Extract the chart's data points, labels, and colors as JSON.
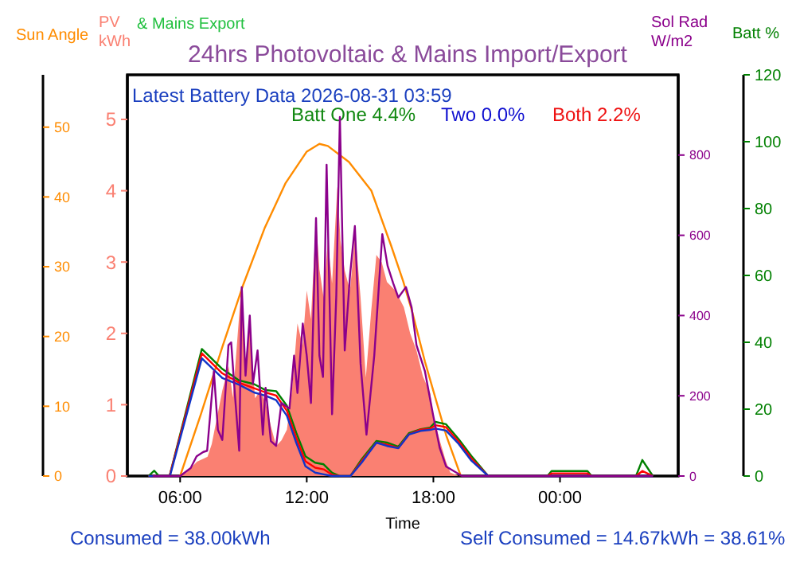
{
  "chart_data": [
    {
      "type": "line",
      "title": "24hrs Photovoltaic & Mains Import/Export",
      "xlabel": "Time",
      "ylabel": "PV kWh",
      "y2label": "Sun Angle",
      "xlim": [
        3.5,
        29.6
      ],
      "xticks": [
        {
          "value": 6,
          "label": "06:00"
        },
        {
          "value": 12,
          "label": "12:00"
        },
        {
          "value": 18,
          "label": "18:00"
        },
        {
          "value": 24,
          "label": "00:00"
        }
      ],
      "ylim": [
        0,
        5.625
      ],
      "yticks": [
        0,
        1,
        2,
        3,
        4,
        5
      ],
      "y2lim": [
        0,
        57.5
      ],
      "y2ticks": [
        0,
        10,
        20,
        30,
        40,
        50
      ],
      "grid": false,
      "annotations": [
        "& Mains Export",
        "Latest Battery Data 2026-08-31 03:59",
        "Batt One 4.4%",
        "Two 0.0%",
        "Both 2.2%",
        "Consumed = 38.00kWh",
        "Self Consumed = 14.67kWh = 38.61%"
      ],
      "series": [
        {
          "type": "area",
          "color": "#fa8072",
          "x": [
            6.0,
            6.3,
            6.8,
            7.3,
            7.5,
            7.8,
            8.0,
            8.3,
            8.5,
            8.9,
            9.1,
            9.3,
            9.55,
            9.8,
            10.05,
            10.3,
            10.55,
            10.8,
            11.06,
            11.3,
            11.56,
            11.8,
            12.0,
            12.2,
            12.44,
            12.6,
            12.8,
            13.0,
            13.2,
            13.45,
            13.6,
            13.8,
            14.05,
            14.3,
            14.55,
            14.8,
            15.05,
            15.3,
            15.55,
            15.8,
            16.2,
            16.6,
            16.9,
            17.2,
            17.5,
            17.85,
            17.98,
            18.3,
            18.6,
            18.8,
            19.2
          ],
          "values": [
            0,
            0.05,
            0.2,
            0.27,
            0.45,
            0.9,
            1.2,
            1.54,
            1.1,
            2.65,
            1.6,
            2.14,
            1.09,
            1.2,
            1.03,
            0.7,
            0.42,
            0.5,
            0.65,
            1.2,
            2.14,
            1.83,
            2.6,
            2.2,
            3.6,
            2.9,
            2.5,
            3.3,
            2.7,
            4.06,
            3.3,
            2.88,
            2.6,
            3.4,
            2.5,
            1.38,
            2.3,
            3.1,
            3.0,
            2.72,
            2.6,
            2.37,
            2.0,
            1.76,
            1.4,
            1.16,
            0.87,
            0.5,
            0.2,
            0.05,
            0
          ]
        },
        {
          "axis": "y2",
          "color": "#ff8c00",
          "x": [
            6.0,
            7.0,
            8.0,
            9.0,
            10.0,
            11.0,
            12.0,
            12.6,
            13.0,
            14.0,
            15.06,
            16.0,
            16.57,
            17.0,
            17.6,
            18.0,
            18.6,
            19.3
          ],
          "values": [
            0,
            9,
            18.5,
            27.5,
            35.5,
            42,
            46.5,
            47.6,
            47.3,
            45,
            40.9,
            33,
            27.9,
            23.5,
            16.4,
            12.2,
            5.9,
            0
          ]
        }
      ]
    },
    {
      "type": "line",
      "ylabel": "Sol Rad W/m2",
      "y2label": "Batt %",
      "xlim": [
        3.5,
        29.6
      ],
      "tick_labels": "y",
      "ylim": [
        0,
        1000
      ],
      "yticks": [
        0,
        200,
        400,
        600,
        800
      ],
      "y2lim": [
        0,
        120
      ],
      "y2ticks": [
        0,
        20,
        40,
        60,
        80,
        100,
        120
      ],
      "grid": false,
      "series": [
        {
          "axis": "y2",
          "color": "#008000",
          "x": [
            4.5,
            4.77,
            5.0,
            5.5,
            7.03,
            8.0,
            8.8,
            9.5,
            10.05,
            10.55,
            11.06,
            11.5,
            11.94,
            12.4,
            12.8,
            13.2,
            13.57,
            14.07,
            14.6,
            15.3,
            15.8,
            16.34,
            16.84,
            17.4,
            17.85,
            18.1,
            18.6,
            19.2,
            19.8,
            20.6,
            23.4,
            23.6,
            25.3,
            25.5,
            27.6,
            27.9,
            28.4
          ],
          "values": [
            0,
            1.6,
            0,
            0,
            38.0,
            32,
            28.6,
            27.5,
            25.7,
            25.4,
            21,
            13,
            5.9,
            4,
            3.5,
            1,
            0,
            0,
            5,
            10.5,
            10,
            8.8,
            12.8,
            14,
            14.5,
            16.2,
            15.5,
            11,
            6,
            0,
            0,
            1.5,
            1.5,
            0,
            0,
            4.8,
            0
          ]
        },
        {
          "axis": "y2",
          "color": "#ff0000",
          "x": [
            4.5,
            5.5,
            7.03,
            8.0,
            8.8,
            9.5,
            10.05,
            10.55,
            11.06,
            11.5,
            11.94,
            12.4,
            12.8,
            13.2,
            13.57,
            14.07,
            14.6,
            15.3,
            15.8,
            16.34,
            16.84,
            17.4,
            17.85,
            18.1,
            18.6,
            19.2,
            19.8,
            20.6,
            23.4,
            23.6,
            25.3,
            25.5,
            27.6,
            27.9,
            28.4
          ],
          "values": [
            0,
            0,
            36.7,
            30.7,
            27.9,
            26.3,
            25.0,
            24.1,
            19.5,
            11.5,
            4.4,
            2.5,
            2,
            0.4,
            0,
            0,
            4.5,
            10,
            9.4,
            8.4,
            12.5,
            13.9,
            14.2,
            15.2,
            14.6,
            10.3,
            5.3,
            0,
            0,
            0.8,
            0.8,
            0,
            0,
            1.5,
            0
          ]
        },
        {
          "axis": "y2",
          "color": "#1034c8",
          "x": [
            4.5,
            5.52,
            7.03,
            8.0,
            8.8,
            9.5,
            10.05,
            10.55,
            11.06,
            11.5,
            11.94,
            12.4,
            12.8,
            13.2,
            13.57,
            14.07,
            14.6,
            15.3,
            15.8,
            16.34,
            16.84,
            17.4,
            17.85,
            18.1,
            18.6,
            19.2,
            19.8,
            20.6,
            28.4
          ],
          "values": [
            0,
            0,
            35.2,
            29.3,
            27.3,
            25.0,
            24,
            22.7,
            18,
            10,
            2.9,
            1,
            0.5,
            0,
            0,
            0,
            4,
            10,
            9,
            8.3,
            12.4,
            13.5,
            13.8,
            14.2,
            13.6,
            9.6,
            4.6,
            0,
            0
          ]
        },
        {
          "color": "#8b008b",
          "x": [
            4.7,
            6.0,
            6.5,
            6.78,
            7.1,
            7.28,
            7.5,
            7.6,
            7.79,
            8.0,
            8.29,
            8.42,
            8.6,
            8.8,
            8.92,
            9.1,
            9.3,
            9.45,
            9.67,
            9.92,
            10.05,
            10.3,
            10.55,
            10.8,
            11.18,
            11.4,
            11.56,
            11.81,
            12.0,
            12.2,
            12.44,
            12.6,
            12.77,
            12.94,
            13.2,
            13.4,
            13.57,
            13.8,
            14.05,
            14.28,
            14.55,
            14.83,
            15.2,
            15.58,
            15.83,
            16.1,
            16.34,
            16.7,
            16.97,
            17.2,
            17.6,
            17.98,
            18.3,
            18.6,
            19.36,
            28.4
          ],
          "values": [
            0,
            0,
            20,
            49,
            60,
            63,
            200,
            261,
            115,
            90,
            326,
            333,
            200,
            63,
            471,
            250,
            400,
            230,
            313,
            103,
            220,
            87,
            75,
            182,
            168,
            300,
            207,
            380,
            300,
            182,
            643,
            300,
            247,
            776,
            154,
            450,
            895,
            313,
            500,
            623,
            280,
            103,
            301,
            603,
            524,
            480,
            445,
            471,
            420,
            326,
            261,
            154,
            70,
            24,
            0,
            0
          ]
        }
      ]
    }
  ]
}
